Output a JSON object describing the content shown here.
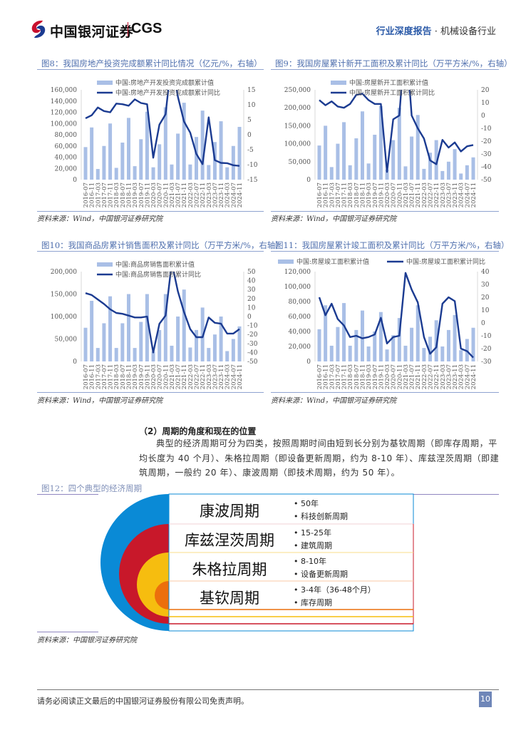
{
  "header": {
    "brand_cn": "中国银河证券",
    "brand_en": "CGS",
    "report_type": "行业深度报告",
    "separator": " · ",
    "industry": "机械设备行业"
  },
  "colors": {
    "bar": "#a9bfe6",
    "line": "#1b3b91",
    "title": "#4f6fae",
    "blue": "#0a8ad6",
    "red": "#c8182a",
    "yellow": "#f6bd0f",
    "orange": "#ec6f0c"
  },
  "chart_data": [
    {
      "id": "fig8",
      "type": "bar+line",
      "title": "图8：我国房地产投资完成额累计同比情况（亿元/%，右轴）",
      "source": "资料来源：Wind，中国银河证券研究院",
      "legend": [
        "中国:房地产开发投资完成额累计值",
        "中国:房地产开发投资完成额累计同比"
      ],
      "legend_layout": "stacked",
      "x": [
        "2016-07",
        "2016-11",
        "2017-03",
        "2017-07",
        "2017-11",
        "2018-03",
        "2018-07",
        "2018-11",
        "2019-03",
        "2019-07",
        "2019-11",
        "2020-03",
        "2020-07",
        "2020-11",
        "2021-03",
        "2021-07",
        "2021-11",
        "2022-03",
        "2022-07",
        "2022-11",
        "2023-03",
        "2023-07",
        "2023-11",
        "2024-03",
        "2024-07",
        "2024-11"
      ],
      "ylim_left": [
        0,
        160000
      ],
      "yticks_left": [
        "0",
        "20,000",
        "40,000",
        "60,000",
        "80,000",
        "100,000",
        "120,000",
        "140,000",
        "160,000"
      ],
      "ylim_right": [
        -15,
        15
      ],
      "yticks_right": [
        "-15",
        "-10",
        "-5",
        "0",
        "5",
        "10",
        "15"
      ],
      "bars": [
        58000,
        93000,
        19000,
        60000,
        100000,
        21000,
        66000,
        110000,
        24000,
        72000,
        121000,
        22000,
        63000,
        129000,
        27000,
        82000,
        137000,
        27000,
        76000,
        123000,
        26000,
        67000,
        104000,
        22000,
        60000,
        94000
      ],
      "line": [
        5.5,
        6.5,
        9.1,
        7.9,
        7.5,
        10.4,
        10.2,
        9.7,
        11.8,
        10.6,
        10.2,
        -7.7,
        3.4,
        6.8,
        25.6,
        12.7,
        4.4,
        0.7,
        -6.4,
        -9.8,
        5.8,
        -8.5,
        -9.4,
        -9.5,
        -10.2,
        -10.4
      ]
    },
    {
      "id": "fig9",
      "type": "bar+line",
      "title": "图9：我国房屋累计新开工面积及累计同比（万平方米/%，右轴）",
      "source": "资料来源：Wind，中国银河证券研究院",
      "legend": [
        "中国:房屋新开工面积累计值",
        "中国:房屋新开工面积累计同比"
      ],
      "legend_layout": "stacked",
      "x": [
        "2016-07",
        "2016-11",
        "2017-03",
        "2017-07",
        "2017-11",
        "2018-03",
        "2018-07",
        "2018-11",
        "2019-03",
        "2019-07",
        "2019-11",
        "2020-03",
        "2020-07",
        "2020-11",
        "2021-03",
        "2021-07",
        "2021-11",
        "2022-03",
        "2022-07",
        "2022-11",
        "2023-03",
        "2023-07",
        "2023-11",
        "2024-03",
        "2024-07",
        "2024-11"
      ],
      "ylim_left": [
        0,
        250000
      ],
      "yticks_left": [
        "0",
        "50,000",
        "100,000",
        "150,000",
        "200,000",
        "250,000"
      ],
      "ylim_right": [
        -50,
        20
      ],
      "yticks_right": [
        "-50",
        "-40",
        "-30",
        "-20",
        "-10",
        "0",
        "10",
        "20"
      ],
      "bars": [
        95000,
        150000,
        35000,
        100000,
        160000,
        40000,
        115000,
        190000,
        45000,
        125000,
        205000,
        28000,
        110000,
        200000,
        37000,
        120000,
        180000,
        30000,
        75000,
        110000,
        24000,
        50000,
        85000,
        17000,
        40000,
        62000
      ],
      "line": [
        12,
        8,
        11,
        7,
        6,
        9,
        16,
        17,
        12,
        9,
        9,
        -44,
        -3,
        0,
        64,
        0,
        -10,
        -18,
        -35,
        -38,
        -19,
        -25,
        -21,
        -28,
        -24,
        -23
      ]
    },
    {
      "id": "fig10",
      "type": "bar+line",
      "title": "图10：我国商品房累计销售面积及累计同比（万平方米/%，右轴）",
      "source": "资料来源：Wind，中国银河证券研究院",
      "legend": [
        "中国:商品房销售面积累计值",
        "中国:商品房销售面积累计同比"
      ],
      "legend_layout": "stacked",
      "x": [
        "2016-07",
        "2016-11",
        "2017-03",
        "2017-07",
        "2017-11",
        "2018-03",
        "2018-07",
        "2018-11",
        "2019-03",
        "2019-07",
        "2019-11",
        "2020-03",
        "2020-07",
        "2020-11",
        "2021-03",
        "2021-07",
        "2021-11",
        "2022-03",
        "2022-07",
        "2022-11",
        "2023-03",
        "2023-07",
        "2023-11",
        "2024-03",
        "2024-07",
        "2024-11"
      ],
      "ylim_left": [
        0,
        200000
      ],
      "yticks_left": [
        "0",
        "50,000",
        "100,000",
        "150,000",
        "200,000"
      ],
      "ylim_right": [
        -50,
        50
      ],
      "yticks_right": [
        "-50",
        "-40",
        "-30",
        "-20",
        "-10",
        "0",
        "10",
        "20",
        "30",
        "40",
        "50"
      ],
      "bars": [
        75000,
        135000,
        30000,
        85000,
        145000,
        30000,
        85000,
        150000,
        30000,
        88000,
        150000,
        22000,
        70000,
        150000,
        35000,
        100000,
        160000,
        31000,
        70000,
        120000,
        30000,
        60000,
        100000,
        23000,
        50000,
        78000
      ],
      "line": [
        26,
        24,
        19,
        14,
        8,
        4,
        3,
        1,
        -1,
        -1,
        0,
        -40,
        -8,
        1,
        60,
        28,
        5,
        -14,
        -23,
        -23,
        -1,
        -7,
        -8,
        -19,
        -19,
        -14
      ]
    },
    {
      "id": "fig11",
      "type": "bar+line",
      "title": "图11：我国房屋累计竣工面积及累计同比（万平方米/%，右轴）",
      "source": "资料来源：Wind，中国银河证券研究院",
      "legend": [
        "中国:房屋竣工面积累计值",
        "中国:房屋竣工面积累计同比"
      ],
      "legend_layout": "inline",
      "x": [
        "2016-07",
        "2016-11",
        "2017-03",
        "2017-07",
        "2017-11",
        "2018-03",
        "2018-07",
        "2018-11",
        "2019-03",
        "2019-07",
        "2019-11",
        "2020-03",
        "2020-07",
        "2020-11",
        "2021-03",
        "2021-07",
        "2021-11",
        "2022-03",
        "2022-07",
        "2022-11",
        "2023-03",
        "2023-07",
        "2023-11",
        "2024-03",
        "2024-07",
        "2024-11"
      ],
      "ylim_left": [
        0,
        120000
      ],
      "yticks_left": [
        "0",
        "20,000",
        "40,000",
        "60,000",
        "80,000",
        "100,000",
        "120,000"
      ],
      "ylim_right": [
        -30,
        40
      ],
      "yticks_right": [
        "-30",
        "-20",
        "-10",
        "0",
        "10",
        "20",
        "30",
        "40"
      ],
      "bars": [
        43000,
        75000,
        21000,
        46000,
        78000,
        21000,
        42000,
        68000,
        20000,
        40000,
        66000,
        16000,
        35000,
        58000,
        21000,
        45000,
        75000,
        18000,
        33000,
        55000,
        20000,
        42000,
        62000,
        15000,
        30000,
        45000
      ],
      "line": [
        20,
        6,
        15,
        3,
        -2,
        -11,
        -10,
        -12,
        -11,
        -9,
        4,
        -16,
        -11,
        -10,
        39,
        26,
        16,
        -11,
        -24,
        -19,
        15,
        20,
        17,
        -20,
        -22,
        -27
      ]
    }
  ],
  "section": {
    "heading": "（2）周期的角度和现在的位置",
    "paragraph": "典型的经济周期可分为四类，按照周期时间由短到长分别为基钦周期（即库存周期，平均长度为 40 个月）、朱格拉周期（即设备更新周期，约为 8-10 年）、库兹涅茨周期（即建筑周期，一般约 20 年）、康波周期（即技术周期，约为 50 年）。"
  },
  "fig12": {
    "title": "图12：四个典型的经济周期",
    "cycles": [
      {
        "name": "康波周期",
        "items": [
          "50年",
          "科技创新周期"
        ]
      },
      {
        "name": "库兹涅茨周期",
        "items": [
          "15-25年",
          "建筑周期"
        ]
      },
      {
        "name": "朱格拉周期",
        "items": [
          "8-10年",
          "设备更新周期"
        ]
      },
      {
        "name": "基钦周期",
        "items": [
          "3-4年（36-48个月）",
          "库存周期"
        ]
      }
    ],
    "source": "资料来源：中国银河证券研究院"
  },
  "footer": {
    "disclaimer": "请务必阅读正文最后的中国银河证券股份有限公司免责声明。",
    "page": "10"
  }
}
